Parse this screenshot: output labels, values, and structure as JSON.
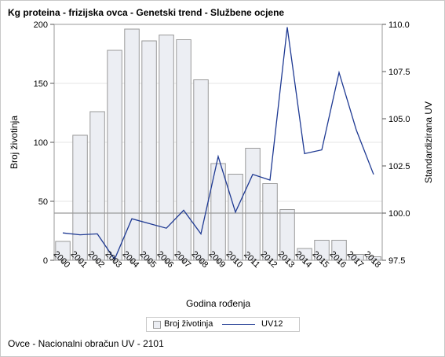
{
  "title": "Kg proteina - frizijska ovca - Genetski trend - Službene ocjene",
  "footnote": "Ovce - Nacionalni obračun UV - 2101",
  "colors": {
    "bar_fill": "#eceef3",
    "bar_stroke": "#9a9a9a",
    "line": "#1f3a93",
    "reference_line": "#9a9a9a",
    "grid": "#e4e4e4"
  },
  "chart_data": {
    "type": "bar+line",
    "xlabel": "Godina rođenja",
    "ylabel_left": "Broj životinja",
    "ylabel_right": "Standardizirana UV",
    "ylim_left": [
      0,
      200
    ],
    "yticks_left": [
      "0",
      "50",
      "100",
      "150",
      "200"
    ],
    "ylim_right": [
      97.5,
      110.0
    ],
    "yticks_right": [
      "97.5",
      "100.0",
      "102.5",
      "105.0",
      "107.5",
      "110.0"
    ],
    "reference_line_right": 100.0,
    "grid": true,
    "categories": [
      "2000",
      "2001",
      "2002",
      "2003",
      "2004",
      "2005",
      "2006",
      "2007",
      "2008",
      "2009",
      "2010",
      "2011",
      "2012",
      "2013",
      "2014",
      "2015",
      "2016",
      "2017",
      "2018"
    ],
    "series": [
      {
        "name": "Broj životinja",
        "type": "bar",
        "axis": "left",
        "values": [
          16,
          106,
          126,
          178,
          196,
          186,
          191,
          187,
          153,
          82,
          73,
          95,
          65,
          43,
          10,
          17,
          17,
          5,
          3
        ]
      },
      {
        "name": "UV12",
        "type": "line",
        "axis": "right",
        "values": [
          98.95,
          98.85,
          98.9,
          97.55,
          99.7,
          99.45,
          99.2,
          100.15,
          98.9,
          103.0,
          100.05,
          102.05,
          101.75,
          109.85,
          103.15,
          103.35,
          107.45,
          104.4,
          102.05
        ]
      }
    ],
    "legend": {
      "position": "bottom",
      "entries": [
        "Broj životinja",
        "UV12"
      ]
    }
  }
}
